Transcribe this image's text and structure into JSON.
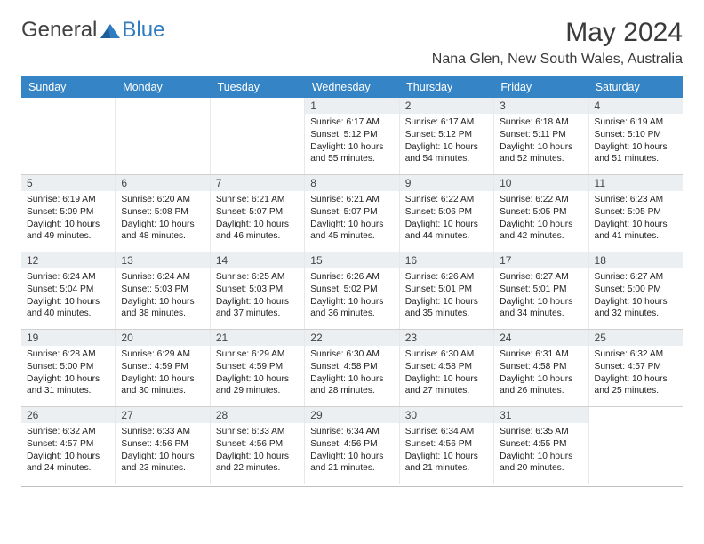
{
  "logo": {
    "word1": "General",
    "word2": "Blue"
  },
  "title": "May 2024",
  "location": "Nana Glen, New South Wales, Australia",
  "colors": {
    "header_bg": "#3585c6",
    "header_fg": "#ffffff",
    "daynum_bg": "#eceff1",
    "grid_line": "#d0d0d0",
    "logo_blue": "#2f7cc0",
    "text": "#212121"
  },
  "typography": {
    "title_fontsize": 30,
    "location_fontsize": 16,
    "dow_fontsize": 12.5,
    "daynum_fontsize": 12,
    "info_fontsize": 10.2
  },
  "daysOfWeek": [
    "Sunday",
    "Monday",
    "Tuesday",
    "Wednesday",
    "Thursday",
    "Friday",
    "Saturday"
  ],
  "weeks": [
    [
      null,
      null,
      null,
      {
        "n": "1",
        "sr": "6:17 AM",
        "ss": "5:12 PM",
        "dl": "10 hours and 55 minutes."
      },
      {
        "n": "2",
        "sr": "6:17 AM",
        "ss": "5:12 PM",
        "dl": "10 hours and 54 minutes."
      },
      {
        "n": "3",
        "sr": "6:18 AM",
        "ss": "5:11 PM",
        "dl": "10 hours and 52 minutes."
      },
      {
        "n": "4",
        "sr": "6:19 AM",
        "ss": "5:10 PM",
        "dl": "10 hours and 51 minutes."
      }
    ],
    [
      {
        "n": "5",
        "sr": "6:19 AM",
        "ss": "5:09 PM",
        "dl": "10 hours and 49 minutes."
      },
      {
        "n": "6",
        "sr": "6:20 AM",
        "ss": "5:08 PM",
        "dl": "10 hours and 48 minutes."
      },
      {
        "n": "7",
        "sr": "6:21 AM",
        "ss": "5:07 PM",
        "dl": "10 hours and 46 minutes."
      },
      {
        "n": "8",
        "sr": "6:21 AM",
        "ss": "5:07 PM",
        "dl": "10 hours and 45 minutes."
      },
      {
        "n": "9",
        "sr": "6:22 AM",
        "ss": "5:06 PM",
        "dl": "10 hours and 44 minutes."
      },
      {
        "n": "10",
        "sr": "6:22 AM",
        "ss": "5:05 PM",
        "dl": "10 hours and 42 minutes."
      },
      {
        "n": "11",
        "sr": "6:23 AM",
        "ss": "5:05 PM",
        "dl": "10 hours and 41 minutes."
      }
    ],
    [
      {
        "n": "12",
        "sr": "6:24 AM",
        "ss": "5:04 PM",
        "dl": "10 hours and 40 minutes."
      },
      {
        "n": "13",
        "sr": "6:24 AM",
        "ss": "5:03 PM",
        "dl": "10 hours and 38 minutes."
      },
      {
        "n": "14",
        "sr": "6:25 AM",
        "ss": "5:03 PM",
        "dl": "10 hours and 37 minutes."
      },
      {
        "n": "15",
        "sr": "6:26 AM",
        "ss": "5:02 PM",
        "dl": "10 hours and 36 minutes."
      },
      {
        "n": "16",
        "sr": "6:26 AM",
        "ss": "5:01 PM",
        "dl": "10 hours and 35 minutes."
      },
      {
        "n": "17",
        "sr": "6:27 AM",
        "ss": "5:01 PM",
        "dl": "10 hours and 34 minutes."
      },
      {
        "n": "18",
        "sr": "6:27 AM",
        "ss": "5:00 PM",
        "dl": "10 hours and 32 minutes."
      }
    ],
    [
      {
        "n": "19",
        "sr": "6:28 AM",
        "ss": "5:00 PM",
        "dl": "10 hours and 31 minutes."
      },
      {
        "n": "20",
        "sr": "6:29 AM",
        "ss": "4:59 PM",
        "dl": "10 hours and 30 minutes."
      },
      {
        "n": "21",
        "sr": "6:29 AM",
        "ss": "4:59 PM",
        "dl": "10 hours and 29 minutes."
      },
      {
        "n": "22",
        "sr": "6:30 AM",
        "ss": "4:58 PM",
        "dl": "10 hours and 28 minutes."
      },
      {
        "n": "23",
        "sr": "6:30 AM",
        "ss": "4:58 PM",
        "dl": "10 hours and 27 minutes."
      },
      {
        "n": "24",
        "sr": "6:31 AM",
        "ss": "4:58 PM",
        "dl": "10 hours and 26 minutes."
      },
      {
        "n": "25",
        "sr": "6:32 AM",
        "ss": "4:57 PM",
        "dl": "10 hours and 25 minutes."
      }
    ],
    [
      {
        "n": "26",
        "sr": "6:32 AM",
        "ss": "4:57 PM",
        "dl": "10 hours and 24 minutes."
      },
      {
        "n": "27",
        "sr": "6:33 AM",
        "ss": "4:56 PM",
        "dl": "10 hours and 23 minutes."
      },
      {
        "n": "28",
        "sr": "6:33 AM",
        "ss": "4:56 PM",
        "dl": "10 hours and 22 minutes."
      },
      {
        "n": "29",
        "sr": "6:34 AM",
        "ss": "4:56 PM",
        "dl": "10 hours and 21 minutes."
      },
      {
        "n": "30",
        "sr": "6:34 AM",
        "ss": "4:56 PM",
        "dl": "10 hours and 21 minutes."
      },
      {
        "n": "31",
        "sr": "6:35 AM",
        "ss": "4:55 PM",
        "dl": "10 hours and 20 minutes."
      },
      null
    ]
  ],
  "labels": {
    "sunrise": "Sunrise:",
    "sunset": "Sunset:",
    "daylight": "Daylight:"
  }
}
